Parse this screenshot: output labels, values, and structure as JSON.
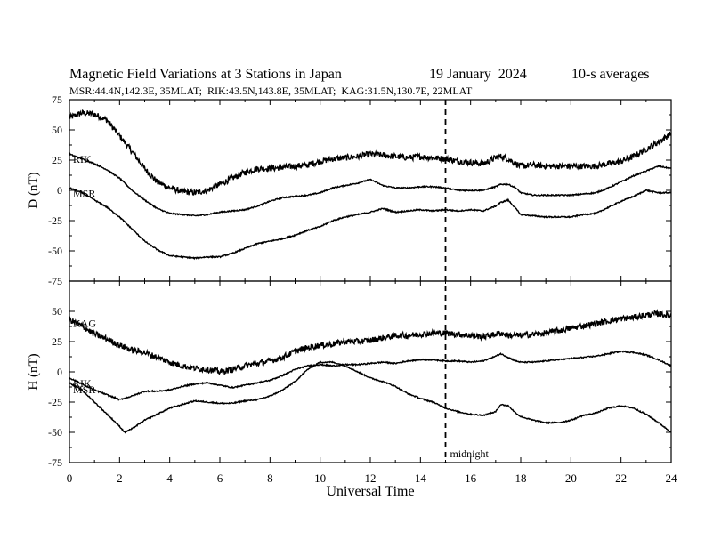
{
  "chart_data": {
    "type": "line",
    "title": "Magnetic Field Variations at 3 Stations in Japan",
    "date": "19 January  2024",
    "averaging": "10-s averages",
    "stations_info": "MSR:44.4N,142.3E, 35MLAT;  RIK:43.5N,143.8E, 35MLAT;  KAG:31.5N,130.7E, 22MLAT",
    "xlabel": "Universal Time",
    "xlim": [
      0,
      24
    ],
    "xticks": [
      0,
      2,
      4,
      6,
      8,
      10,
      12,
      14,
      16,
      18,
      20,
      22,
      24
    ],
    "midnight": {
      "x": 15,
      "label": "midnight"
    },
    "panels": [
      {
        "name": "D",
        "ylabel": "D (nT)",
        "ylim": [
          -75,
          75
        ],
        "yticks": [
          -75,
          -50,
          -25,
          0,
          25,
          50,
          75
        ],
        "series": [
          {
            "name": "KAG",
            "label_visible": false,
            "noise": 2.5,
            "x": [
              0,
              0.5,
              1,
              1.5,
              2,
              2.5,
              3,
              3.5,
              4,
              4.5,
              5,
              5.5,
              6,
              6.5,
              7,
              7.5,
              8,
              8.5,
              9,
              9.5,
              10,
              10.5,
              11,
              11.5,
              12,
              12.5,
              13,
              13.5,
              14,
              14.5,
              15,
              15.5,
              16,
              16.5,
              17,
              17.2,
              17.5,
              17.8,
              18,
              18.5,
              19,
              19.5,
              20,
              20.5,
              21,
              21.5,
              22,
              22.5,
              23,
              23.5,
              24
            ],
            "y": [
              60,
              64,
              63,
              58,
              45,
              32,
              18,
              7,
              2,
              -1,
              -2,
              0,
              5,
              10,
              15,
              18,
              18,
              19,
              20,
              21,
              24,
              26,
              27,
              28,
              30,
              29,
              28,
              27,
              28,
              27,
              26,
              24,
              23,
              22,
              27,
              28,
              26,
              22,
              20,
              21,
              20,
              20,
              20,
              20,
              20,
              22,
              24,
              28,
              34,
              40,
              47
            ]
          },
          {
            "name": "RIK",
            "label_visible": true,
            "noise": 0.5,
            "x": [
              0,
              0.5,
              1,
              1.5,
              2,
              2.5,
              3,
              3.5,
              4,
              4.5,
              5,
              5.5,
              6,
              6.5,
              7,
              7.5,
              8,
              8.5,
              9,
              9.5,
              10,
              10.5,
              11,
              11.5,
              12,
              12.5,
              13,
              13.5,
              14,
              14.5,
              15,
              15.5,
              16,
              16.5,
              17,
              17.2,
              17.5,
              17.8,
              18,
              18.5,
              19,
              19.5,
              20,
              20.5,
              21,
              21.5,
              22,
              22.5,
              23,
              23.5,
              24
            ],
            "y": [
              30,
              26,
              22,
              17,
              10,
              0,
              -8,
              -15,
              -19,
              -20,
              -21,
              -20,
              -18,
              -17,
              -16,
              -13,
              -9,
              -6,
              -5,
              -4,
              -2,
              2,
              4,
              6,
              9,
              4,
              2,
              2,
              3,
              3,
              2,
              0,
              0,
              0,
              3,
              5,
              5,
              2,
              -2,
              -4,
              -4,
              -4,
              -4,
              -3,
              -2,
              2,
              7,
              12,
              16,
              20,
              18
            ]
          },
          {
            "name": "MSR",
            "label_visible": true,
            "noise": 0.5,
            "x": [
              0,
              0.5,
              1,
              1.5,
              2,
              2.5,
              3,
              3.5,
              4,
              4.5,
              5,
              5.5,
              6,
              6.5,
              7,
              7.5,
              8,
              8.5,
              9,
              9.5,
              10,
              10.5,
              11,
              11.5,
              12,
              12.5,
              13,
              13.5,
              14,
              14.5,
              15,
              15.5,
              16,
              16.5,
              17,
              17.2,
              17.5,
              17.8,
              18,
              18.5,
              19,
              19.5,
              20,
              20.5,
              21,
              21.5,
              22,
              22.5,
              23,
              23.5,
              24
            ],
            "y": [
              2,
              -2,
              -8,
              -14,
              -22,
              -32,
              -42,
              -49,
              -54,
              -55,
              -56,
              -55,
              -55,
              -52,
              -48,
              -44,
              -42,
              -40,
              -37,
              -33,
              -30,
              -25,
              -22,
              -20,
              -18,
              -15,
              -18,
              -17,
              -16,
              -17,
              -16,
              -17,
              -16,
              -17,
              -13,
              -10,
              -8,
              -15,
              -20,
              -21,
              -22,
              -22,
              -22,
              -20,
              -19,
              -14,
              -9,
              -5,
              0,
              -2,
              -2
            ]
          }
        ]
      },
      {
        "name": "H",
        "ylabel": "H (nT)",
        "ylim": [
          -75,
          75
        ],
        "yticks": [
          -75,
          -50,
          -25,
          0,
          25,
          50
        ],
        "series": [
          {
            "name": "KAG",
            "label_visible": true,
            "noise": 2.5,
            "x": [
              0,
              0.5,
              1,
              1.5,
              2,
              2.5,
              3,
              3.5,
              4,
              4.5,
              5,
              5.5,
              6,
              6.5,
              7,
              7.5,
              8,
              8.5,
              9,
              9.5,
              10,
              10.5,
              11,
              11.5,
              12,
              12.5,
              13,
              13.5,
              14,
              14.5,
              15,
              15.5,
              16,
              16.5,
              17,
              17.2,
              17.5,
              17.8,
              18,
              18.5,
              19,
              19.5,
              20,
              20.5,
              21,
              21.5,
              22,
              22.5,
              23,
              23.5,
              24
            ],
            "y": [
              43,
              38,
              31,
              27,
              22,
              18,
              16,
              12,
              8,
              5,
              3,
              2,
              0,
              2,
              5,
              7,
              9,
              12,
              17,
              20,
              22,
              23,
              25,
              25,
              26,
              28,
              30,
              30,
              31,
              32,
              32,
              31,
              30,
              29,
              31,
              32,
              30,
              30,
              30,
              31,
              32,
              34,
              36,
              38,
              40,
              42,
              44,
              45,
              47,
              48,
              46
            ]
          },
          {
            "name": "RIK",
            "label_visible": true,
            "noise": 0.5,
            "x": [
              0,
              0.5,
              1,
              1.5,
              2,
              2.5,
              3,
              3.5,
              4,
              4.5,
              5,
              5.5,
              6,
              6.5,
              7,
              7.5,
              8,
              8.5,
              9,
              9.5,
              10,
              10.5,
              11,
              11.5,
              12,
              12.5,
              13,
              13.5,
              14,
              14.5,
              15,
              15.5,
              16,
              16.5,
              17,
              17.2,
              17.5,
              17.8,
              18,
              18.5,
              19,
              19.5,
              20,
              20.5,
              21,
              21.5,
              22,
              22.5,
              23,
              23.5,
              24
            ],
            "y": [
              -5,
              -10,
              -15,
              -19,
              -23,
              -20,
              -16,
              -16,
              -15,
              -12,
              -10,
              -9,
              -11,
              -13,
              -11,
              -9,
              -7,
              -3,
              2,
              5,
              6,
              5,
              6,
              6,
              7,
              8,
              7,
              9,
              10,
              10,
              9,
              9,
              8,
              9,
              13,
              15,
              12,
              9,
              8,
              8,
              9,
              10,
              11,
              12,
              13,
              15,
              17,
              16,
              14,
              10,
              5
            ]
          },
          {
            "name": "MSR",
            "label_visible": true,
            "noise": 0.5,
            "x": [
              0,
              0.5,
              1,
              1.5,
              2,
              2.2,
              2.5,
              3,
              3.5,
              4,
              4.5,
              5,
              5.5,
              6,
              6.5,
              7,
              7.5,
              8,
              8.5,
              9,
              9.5,
              10,
              10.5,
              11,
              11.5,
              12,
              12.5,
              13,
              13.5,
              14,
              14.5,
              15,
              15.5,
              16,
              16.5,
              17,
              17.2,
              17.5,
              17.8,
              18,
              18.5,
              19,
              19.5,
              20,
              20.5,
              21,
              21.5,
              22,
              22.5,
              23,
              23.5,
              24
            ],
            "y": [
              -9,
              -15,
              -25,
              -35,
              -45,
              -50,
              -47,
              -40,
              -35,
              -30,
              -27,
              -24,
              -25,
              -26,
              -26,
              -24,
              -23,
              -20,
              -15,
              -8,
              2,
              8,
              8,
              5,
              0,
              -5,
              -8,
              -12,
              -18,
              -22,
              -25,
              -30,
              -33,
              -35,
              -36,
              -33,
              -27,
              -28,
              -34,
              -37,
              -40,
              -42,
              -42,
              -40,
              -36,
              -34,
              -30,
              -28,
              -30,
              -35,
              -42,
              -50
            ]
          }
        ]
      }
    ]
  }
}
